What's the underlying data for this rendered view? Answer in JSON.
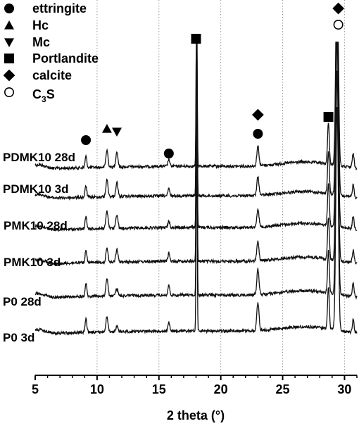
{
  "chart_data": {
    "type": "line",
    "xlabel": "2 theta (°)",
    "ylabel": "",
    "xlim": [
      5,
      31
    ],
    "x_ticks": [
      5,
      10,
      15,
      20,
      25,
      30
    ],
    "grid": "vertical dotted",
    "legend": {
      "placement": "top-left",
      "entries": [
        {
          "marker": "filled-circle",
          "label": "ettringite"
        },
        {
          "marker": "filled-triangle-up",
          "label": "Hc"
        },
        {
          "marker": "filled-triangle-down",
          "label": "Mc"
        },
        {
          "marker": "filled-square",
          "label": "Portlandite"
        },
        {
          "marker": "filled-diamond",
          "label": "calcite"
        },
        {
          "marker": "open-circle",
          "label": "C3S",
          "label_main": "C",
          "label_sub": "3",
          "label_tail": "S"
        }
      ]
    },
    "series": [
      {
        "name": "PDMK10 28d"
      },
      {
        "name": "PDMK10 3d"
      },
      {
        "name": "PMK10 28d"
      },
      {
        "name": "PMK10 3d"
      },
      {
        "name": "P0 28d"
      },
      {
        "name": "P0 3d"
      }
    ],
    "phase_peaks": [
      {
        "phase": "ettringite",
        "two_theta": 9.1
      },
      {
        "phase": "Hc",
        "two_theta": 10.8
      },
      {
        "phase": "Mc",
        "two_theta": 11.6
      },
      {
        "phase": "ettringite",
        "two_theta": 15.8
      },
      {
        "phase": "Portlandite",
        "two_theta": 18.1
      },
      {
        "phase": "ettringite",
        "two_theta": 23.0
      },
      {
        "phase": "calcite",
        "two_theta": 23.0
      },
      {
        "phase": "Portlandite",
        "two_theta": 28.7
      },
      {
        "phase": "C3S",
        "two_theta": 29.4
      },
      {
        "phase": "calcite",
        "two_theta": 29.4
      }
    ],
    "peak_markers": [
      {
        "symbol": "filled-circle",
        "two_theta": 9.1
      },
      {
        "symbol": "filled-triangle-up",
        "two_theta": 10.8
      },
      {
        "symbol": "filled-triangle-down",
        "two_theta": 11.6
      },
      {
        "symbol": "filled-circle",
        "two_theta": 15.8
      },
      {
        "symbol": "filled-square",
        "two_theta": 18.0
      },
      {
        "symbol": "filled-diamond",
        "two_theta": 23.0
      },
      {
        "symbol": "filled-circle",
        "two_theta": 23.0
      },
      {
        "symbol": "filled-square",
        "two_theta": 28.7
      },
      {
        "symbol": "open-circle",
        "two_theta": 29.5
      },
      {
        "symbol": "filled-diamond",
        "two_theta": 29.5
      }
    ]
  }
}
